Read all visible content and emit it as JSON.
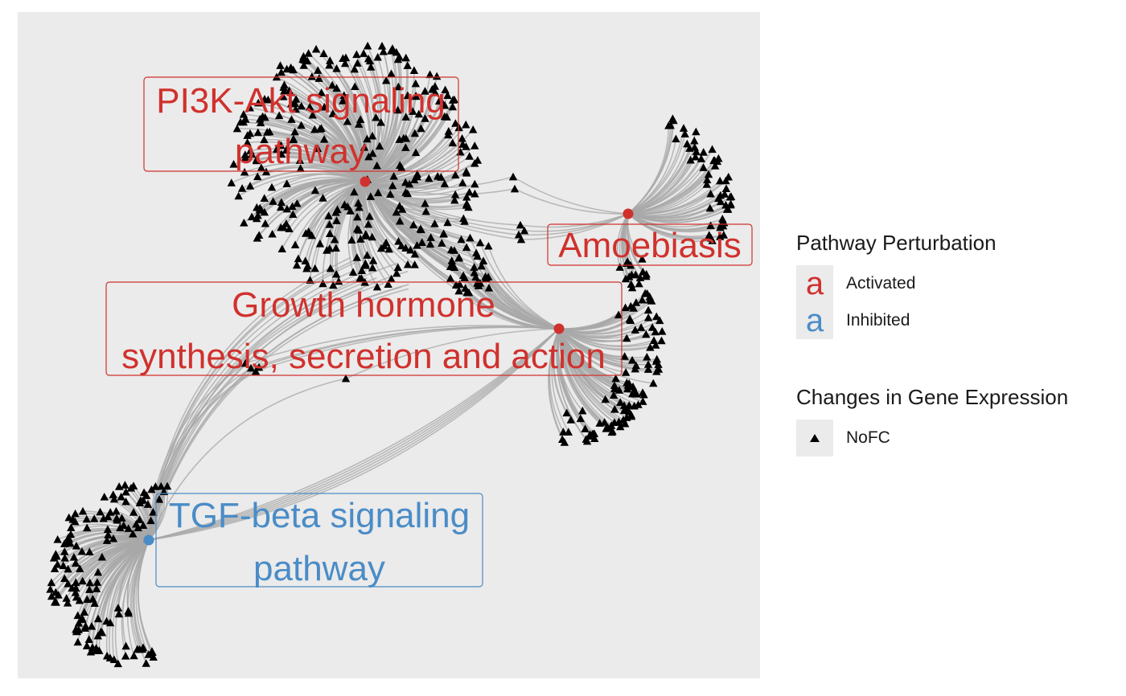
{
  "colors": {
    "activated": "#d0312d",
    "inhibited": "#4a8cc7",
    "gene": "#000000",
    "edge": "#a8a8a8",
    "panel": "#ebebeb"
  },
  "pathways": [
    {
      "id": "pi3k",
      "label": "PI3K-Akt signaling pathway",
      "line1": "PI3K-Akt signaling",
      "line2": "pathway",
      "status": "Activated"
    },
    {
      "id": "amoeb",
      "label": "Amoebiasis",
      "line1": "Amoebiasis",
      "line2": "",
      "status": "Activated"
    },
    {
      "id": "gh",
      "label": "Growth hormone synthesis, secretion and action",
      "line1": "Growth hormone",
      "line2": "synthesis, secretion and action",
      "status": "Activated"
    },
    {
      "id": "tgf",
      "label": "TGF-beta signaling pathway",
      "line1": "TGF-beta signaling",
      "line2": "pathway",
      "status": "Inhibited"
    }
  ],
  "legend": {
    "perturbation_title": "Pathway Perturbation",
    "perturbation_items": [
      {
        "label": "Activated",
        "glyph": "a"
      },
      {
        "label": "Inhibited",
        "glyph": "a"
      }
    ],
    "expression_title": "Changes in Gene Expression",
    "expression_items": [
      {
        "label": "NoFC",
        "icon": "triangle-icon"
      }
    ]
  }
}
